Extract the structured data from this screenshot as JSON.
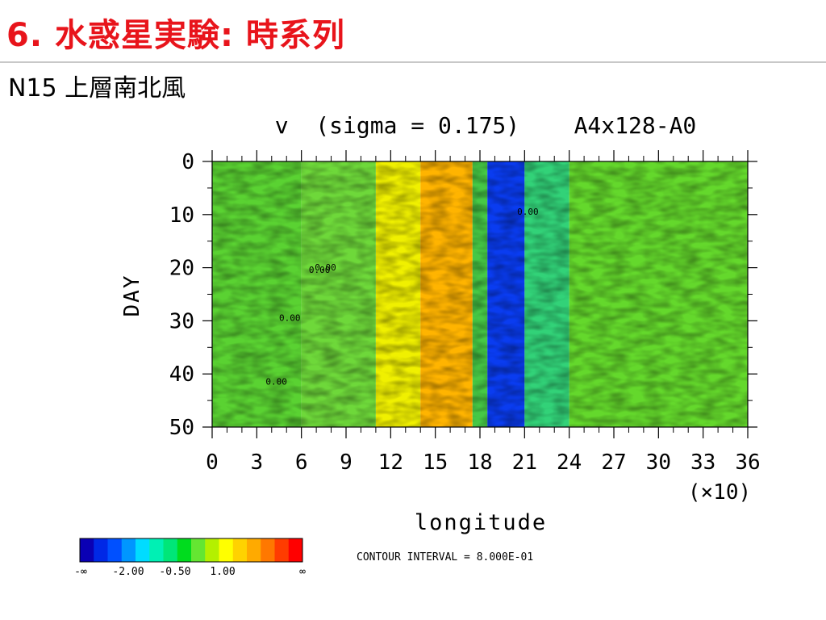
{
  "slide": {
    "title": "6. 水惑星実験: 時系列",
    "subtitle": "N15 上層南北風"
  },
  "chart_data": {
    "type": "heatmap",
    "title": "v  (sigma = 0.175)    A4x128-A0",
    "xlabel": "longitude",
    "x_multiplier": "(×10)",
    "ylabel": "DAY",
    "xlim": [
      0,
      36
    ],
    "ylim": [
      50,
      0
    ],
    "x_ticks": [
      "0",
      "3",
      "6",
      "9",
      "12",
      "15",
      "18",
      "21",
      "24",
      "27",
      "30",
      "33",
      "36"
    ],
    "y_ticks": [
      "0",
      "10",
      "20",
      "30",
      "40",
      "50"
    ],
    "contour_labels": [
      "0.00",
      "0.00",
      "0.00",
      "0.00",
      "0.00"
    ],
    "contour_interval_text": "CONTOUR INTERVAL = 8.000E-01",
    "colorbar": {
      "colors": [
        "#0a00b4",
        "#0028e6",
        "#0050ff",
        "#0096ff",
        "#00dcff",
        "#00f0b4",
        "#00e678",
        "#00dc1e",
        "#64e632",
        "#b4f000",
        "#ffff00",
        "#ffd200",
        "#ffaa00",
        "#ff7800",
        "#ff3c00",
        "#ff0000"
      ],
      "labels": {
        "neg_inf": "-∞",
        "m2": "-2.00",
        "m05": "-0.50",
        "p1": "1.00",
        "pos_inf": "∞"
      }
    },
    "bands": [
      {
        "lon_start": 0,
        "lon_end": 6,
        "level": "green",
        "color": "#5ad232"
      },
      {
        "lon_start": 6,
        "lon_end": 11,
        "level": "green",
        "color": "#6ed83a"
      },
      {
        "lon_start": 11,
        "lon_end": 14,
        "level": "yellow",
        "color": "#f0f000"
      },
      {
        "lon_start": 14,
        "lon_end": 17.5,
        "level": "orange",
        "color": "#ffb400"
      },
      {
        "lon_start": 17.5,
        "lon_end": 18.5,
        "level": "green",
        "color": "#46c846"
      },
      {
        "lon_start": 18.5,
        "lon_end": 21,
        "level": "blue",
        "color": "#0a3cf0"
      },
      {
        "lon_start": 21,
        "lon_end": 24,
        "level": "cyan-green",
        "color": "#32d278"
      },
      {
        "lon_start": 24,
        "lon_end": 36,
        "level": "green",
        "color": "#64d82c"
      }
    ]
  }
}
